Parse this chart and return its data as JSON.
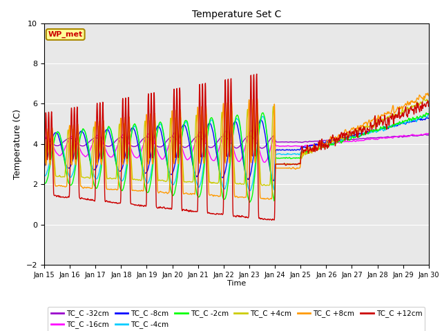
{
  "title": "Temperature Set C",
  "xlabel": "Time",
  "ylabel": "Temperature (C)",
  "ylim": [
    -2,
    10
  ],
  "xlim": [
    0,
    360
  ],
  "wp_met_label": "WP_met",
  "series": [
    {
      "label": "TC_C -32cm",
      "color": "#9900cc"
    },
    {
      "label": "TC_C -16cm",
      "color": "#ff00ff"
    },
    {
      "label": "TC_C -8cm",
      "color": "#0000ff"
    },
    {
      "label": "TC_C -4cm",
      "color": "#00ccff"
    },
    {
      "label": "TC_C -2cm",
      "color": "#00ff00"
    },
    {
      "label": "TC_C +4cm",
      "color": "#cccc00"
    },
    {
      "label": "TC_C +8cm",
      "color": "#ff9900"
    },
    {
      "label": "TC_C +12cm",
      "color": "#cc0000"
    }
  ],
  "xtick_labels": [
    "Jan 15",
    "Jan 16",
    "Jan 17",
    "Jan 18",
    "Jan 19",
    "Jan 20",
    "Jan 21",
    "Jan 22",
    "Jan 23",
    "Jan 24",
    "Jan 25",
    "Jan 26",
    "Jan 27",
    "Jan 28",
    "Jan 29",
    "Jan 30"
  ],
  "xtick_positions": [
    0,
    24,
    48,
    72,
    96,
    120,
    144,
    168,
    192,
    216,
    240,
    264,
    288,
    312,
    336,
    360
  ],
  "plot_bg_color": "#e8e8e8",
  "grid_color": "#ffffff",
  "figsize": [
    6.4,
    4.8
  ],
  "dpi": 100
}
